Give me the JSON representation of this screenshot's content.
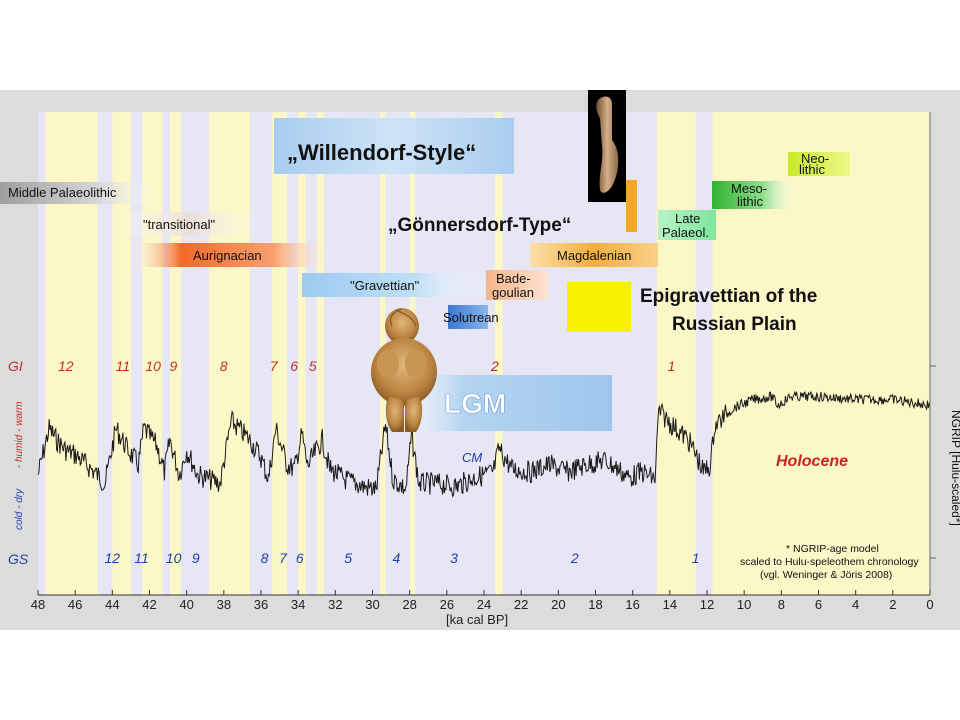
{
  "chart_data": {
    "type": "line",
    "x_axis": {
      "label": "[ka cal BP]",
      "range": [
        48,
        0
      ],
      "ticks": [
        48,
        46,
        44,
        42,
        40,
        38,
        36,
        34,
        32,
        30,
        28,
        26,
        24,
        22,
        20,
        18,
        16,
        14,
        12,
        10,
        8,
        6,
        4,
        2,
        0
      ]
    },
    "y_axis": {
      "label": "NGRIP [Hulu-scaled*]",
      "left_labels": {
        "gi": "GI",
        "gs": "GS",
        "warm": "humid - warm",
        "cold": "cold - dry"
      }
    },
    "series": [
      {
        "values_approx_relative_warmth_0_to_1": [
          [
            48,
            0.38
          ],
          [
            47.4,
            0.7
          ],
          [
            47,
            0.62
          ],
          [
            46.5,
            0.55
          ],
          [
            46,
            0.52
          ],
          [
            45.4,
            0.45
          ],
          [
            44.8,
            0.38
          ],
          [
            44.4,
            0.32
          ],
          [
            43.8,
            0.7
          ],
          [
            43.2,
            0.56
          ],
          [
            42.6,
            0.45
          ],
          [
            42.3,
            0.7
          ],
          [
            41.6,
            0.58
          ],
          [
            41.2,
            0.4
          ],
          [
            40.9,
            0.62
          ],
          [
            40.4,
            0.38
          ],
          [
            40.0,
            0.55
          ],
          [
            39.4,
            0.38
          ],
          [
            38.8,
            0.35
          ],
          [
            38.2,
            0.32
          ],
          [
            37.6,
            0.75
          ],
          [
            36.6,
            0.62
          ],
          [
            36.0,
            0.5
          ],
          [
            35.6,
            0.35
          ],
          [
            35.2,
            0.7
          ],
          [
            34.6,
            0.45
          ],
          [
            34.2,
            0.42
          ],
          [
            33.8,
            0.66
          ],
          [
            33.5,
            0.44
          ],
          [
            32.7,
            0.62
          ],
          [
            32.3,
            0.42
          ],
          [
            31.5,
            0.35
          ],
          [
            30.5,
            0.3
          ],
          [
            29.8,
            0.28
          ],
          [
            29.3,
            0.72
          ],
          [
            28.9,
            0.35
          ],
          [
            28.2,
            0.28
          ],
          [
            27.9,
            0.65
          ],
          [
            27.5,
            0.32
          ],
          [
            26.5,
            0.32
          ],
          [
            25.5,
            0.3
          ],
          [
            24.5,
            0.36
          ],
          [
            23.5,
            0.4
          ],
          [
            23.2,
            0.56
          ],
          [
            22.5,
            0.42
          ],
          [
            21.5,
            0.4
          ],
          [
            20.5,
            0.45
          ],
          [
            19.5,
            0.4
          ],
          [
            18.5,
            0.45
          ],
          [
            17.5,
            0.48
          ],
          [
            16.8,
            0.42
          ],
          [
            16.2,
            0.36
          ],
          [
            15.5,
            0.4
          ],
          [
            14.8,
            0.35
          ],
          [
            14.6,
            0.82
          ],
          [
            14.0,
            0.74
          ],
          [
            13.5,
            0.68
          ],
          [
            13.0,
            0.62
          ],
          [
            12.6,
            0.52
          ],
          [
            12.2,
            0.4
          ],
          [
            11.8,
            0.45
          ],
          [
            11.6,
            0.72
          ],
          [
            10.6,
            0.84
          ],
          [
            9.5,
            0.9
          ],
          [
            8.5,
            0.92
          ],
          [
            8.2,
            0.86
          ],
          [
            7.5,
            0.92
          ],
          [
            6.0,
            0.92
          ],
          [
            4.0,
            0.9
          ],
          [
            2.0,
            0.9
          ],
          [
            0.0,
            0.86
          ]
        ]
      }
    ],
    "gi_labels": [
      {
        "n": "12",
        "ka": 46.6
      },
      {
        "n": "11",
        "ka": 43.5
      },
      {
        "n": "10",
        "ka": 41.9
      },
      {
        "n": "9",
        "ka": 40.6
      },
      {
        "n": "8",
        "ka": 37.9
      },
      {
        "n": "7",
        "ka": 35.2
      },
      {
        "n": "6",
        "ka": 34.1
      },
      {
        "n": "5",
        "ka": 33.1
      },
      {
        "n": "2",
        "ka": 23.3
      },
      {
        "n": "1",
        "ka": 13.8
      }
    ],
    "gs_labels": [
      {
        "n": "12",
        "ka": 44.1
      },
      {
        "n": "11",
        "ka": 42.5
      },
      {
        "n": "10",
        "ka": 40.8
      },
      {
        "n": "9",
        "ka": 39.4
      },
      {
        "n": "8",
        "ka": 35.7
      },
      {
        "n": "7",
        "ka": 34.7
      },
      {
        "n": "6",
        "ka": 33.8
      },
      {
        "n": "5",
        "ka": 31.2
      },
      {
        "n": "4",
        "ka": 28.6
      },
      {
        "n": "3",
        "ka": 25.5
      },
      {
        "n": "2",
        "ka": 19.0
      },
      {
        "n": "1",
        "ka": 12.5
      }
    ],
    "interstadial_bands": [
      [
        47.6,
        44.8
      ],
      [
        44.0,
        43.0
      ],
      [
        42.4,
        41.3
      ],
      [
        40.9,
        40.3
      ],
      [
        38.8,
        36.6
      ],
      [
        35.4,
        34.6
      ],
      [
        34.0,
        33.6
      ],
      [
        33.0,
        32.6
      ],
      [
        29.6,
        29.3
      ],
      [
        28.0,
        27.7
      ],
      [
        23.4,
        23.0
      ],
      [
        14.7,
        12.6
      ],
      [
        11.7,
        0.0
      ]
    ],
    "cultures": [
      {
        "name": "Middle Palaeolithic",
        "start": 50,
        "end": 42.5,
        "color": "#bdbdbd"
      },
      {
        "name": "\"transitional\"",
        "start": 43.5,
        "end": 38.2,
        "color": "#e8dcd2"
      },
      {
        "name": "Aurignacian",
        "start": 42.5,
        "end": 32.0,
        "color": "#f27a3a"
      },
      {
        "name": "\"Gravettian\"",
        "start": 33.5,
        "end": 24.5,
        "color": "#a9d2f0"
      },
      {
        "name": "Solutrean",
        "start": 25.8,
        "end": 24.0,
        "color": "#4a86d6"
      },
      {
        "name": "Bade-\ngoulian",
        "start": 23.8,
        "end": 21.4,
        "color": "#f7c4a0"
      },
      {
        "name": "Magdalenian",
        "start": 21.5,
        "end": 14.7,
        "color": "#f5b23e"
      },
      {
        "name": "Late\nPalaeol.",
        "start": 14.7,
        "end": 11.9,
        "color": "#8ee8a8"
      },
      {
        "name": "Meso-\nlithic",
        "start": 11.0,
        "end": 6.3,
        "color": "#3fbf3f"
      },
      {
        "name": "Neo-\nlithic",
        "start": 7.6,
        "end": 4.4,
        "color": "#d6ef3c"
      }
    ],
    "annotations": {
      "willendorf": "„Willendorf-Style“",
      "gonnersdorf": "„Gönnersdorf-Type“",
      "epigravettian": "Epigravettian of the\nRussian Plain",
      "lgm": "LGM",
      "cm": "CM",
      "holocene": "Holocene",
      "note": "* NGRIP-age model\nscaled to Hulu-speleothem chronology\n(vgl. Weninger & Jöris 2008)"
    },
    "colors": {
      "plot_bg": "#e6e6f5",
      "interstadial": "#fbf7c6",
      "holocene_bg": "#fbf7c6",
      "gi_text": "#c03030",
      "gs_text": "#1f3faa",
      "holocene_text": "#cc2222",
      "series": "#1a1a1a"
    }
  }
}
